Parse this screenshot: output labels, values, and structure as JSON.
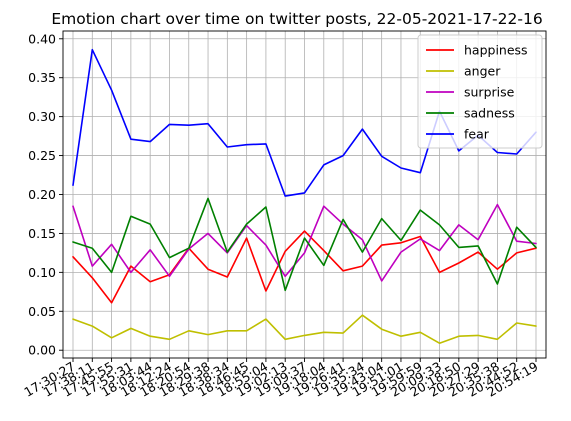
{
  "chart_data": {
    "type": "line",
    "title": "Emotion chart over time on twitter posts, 22-05-2021-17-22-16",
    "xlabel": "",
    "ylabel": "",
    "ylim": [
      -0.01,
      0.41
    ],
    "yticks": [
      0.0,
      0.05,
      0.1,
      0.15,
      0.2,
      0.25,
      0.3,
      0.35,
      0.4
    ],
    "ytick_labels": [
      "0.00",
      "0.05",
      "0.10",
      "0.15",
      "0.20",
      "0.25",
      "0.30",
      "0.35",
      "0.40"
    ],
    "grid": true,
    "legend_position": "top-right",
    "x": [
      "17:30:27",
      "17:38:11",
      "17:45:55",
      "17:55:31",
      "18:03:44",
      "18:12:24",
      "18:20:54",
      "18:29:38",
      "18:38:34",
      "18:46:45",
      "18:55:04",
      "19:02:13",
      "19:09:37",
      "19:18:04",
      "19:26:41",
      "19:35:34",
      "19:43:04",
      "19:51:01",
      "19:59:59",
      "20:09:33",
      "20:18:50",
      "20:27:29",
      "20:35:38",
      "20:44:52",
      "20:54:19"
    ],
    "series": [
      {
        "name": "happiness",
        "color": "#ff0000",
        "values": [
          0.12,
          0.093,
          0.061,
          0.108,
          0.088,
          0.097,
          0.131,
          0.104,
          0.094,
          0.144,
          0.076,
          0.127,
          0.153,
          0.128,
          0.102,
          0.108,
          0.135,
          0.138,
          0.146,
          0.1,
          0.112,
          0.126,
          0.104,
          0.125,
          0.131
        ]
      },
      {
        "name": "anger",
        "color": "#bfbf00",
        "values": [
          0.04,
          0.031,
          0.016,
          0.028,
          0.018,
          0.014,
          0.025,
          0.02,
          0.025,
          0.025,
          0.04,
          0.014,
          0.019,
          0.023,
          0.022,
          0.045,
          0.027,
          0.018,
          0.023,
          0.009,
          0.018,
          0.019,
          0.014,
          0.035,
          0.031
        ]
      },
      {
        "name": "surprise",
        "color": "#bf00bf",
        "values": [
          0.185,
          0.108,
          0.136,
          0.1,
          0.129,
          0.095,
          0.13,
          0.15,
          0.125,
          0.16,
          0.135,
          0.095,
          0.125,
          0.185,
          0.162,
          0.142,
          0.089,
          0.126,
          0.143,
          0.128,
          0.161,
          0.142,
          0.187,
          0.14,
          0.137
        ]
      },
      {
        "name": "sadness",
        "color": "#008000",
        "values": [
          0.139,
          0.131,
          0.1,
          0.172,
          0.162,
          0.119,
          0.131,
          0.195,
          0.126,
          0.162,
          0.184,
          0.077,
          0.144,
          0.109,
          0.168,
          0.126,
          0.169,
          0.141,
          0.18,
          0.161,
          0.132,
          0.134,
          0.085,
          0.158,
          0.132
        ]
      },
      {
        "name": "fear",
        "color": "#0000ff",
        "values": [
          0.212,
          0.386,
          0.334,
          0.271,
          0.268,
          0.29,
          0.289,
          0.291,
          0.261,
          0.264,
          0.265,
          0.198,
          0.202,
          0.238,
          0.25,
          0.284,
          0.249,
          0.234,
          0.228,
          0.307,
          0.256,
          0.276,
          0.254,
          0.252,
          0.28
        ]
      }
    ]
  }
}
